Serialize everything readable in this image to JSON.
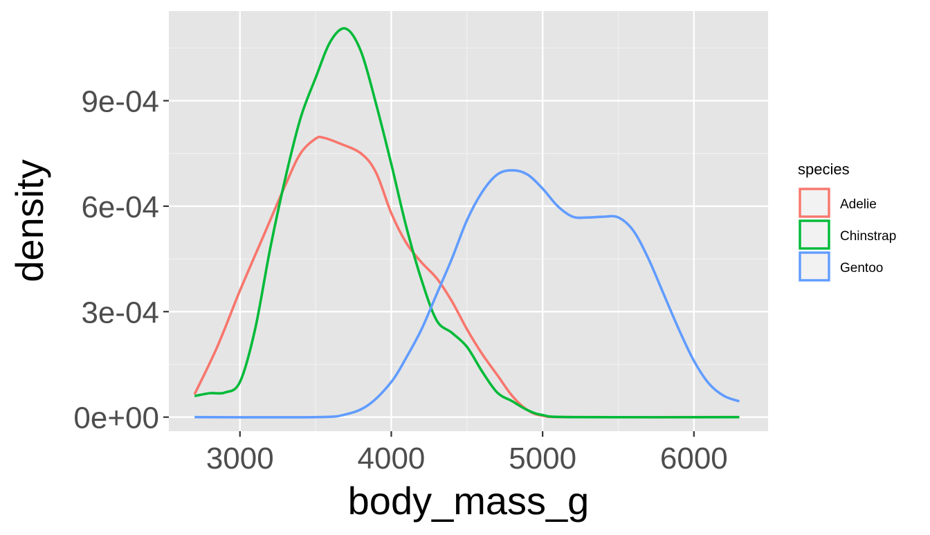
{
  "chart_data": {
    "type": "line",
    "xlabel": "body_mass_g",
    "ylabel": "density",
    "xlim": [
      2530,
      6490
    ],
    "ylim": [
      -4e-05,
      0.001155
    ],
    "x_ticks": [
      3000,
      4000,
      5000,
      6000
    ],
    "x_tick_labels": [
      "3000",
      "4000",
      "5000",
      "6000"
    ],
    "y_ticks": [
      0,
      0.0003,
      0.0006,
      0.0009
    ],
    "y_tick_labels": [
      "0e+00",
      "3e-04",
      "6e-04",
      "9e-04"
    ],
    "grid": true,
    "legend": {
      "title": "species",
      "position": "right"
    },
    "series": [
      {
        "name": "Adelie",
        "color": "#F8766D",
        "points": [
          [
            2700,
            6.5e-05
          ],
          [
            2850,
            0.0002
          ],
          [
            3000,
            0.00036
          ],
          [
            3150,
            0.00051
          ],
          [
            3300,
            0.00066
          ],
          [
            3400,
            0.00075
          ],
          [
            3500,
            0.000792
          ],
          [
            3550,
            0.000795
          ],
          [
            3650,
            0.00078
          ],
          [
            3800,
            0.00075
          ],
          [
            3900,
            0.000695
          ],
          [
            4000,
            0.00058
          ],
          [
            4100,
            0.000495
          ],
          [
            4200,
            0.00044
          ],
          [
            4300,
            0.000395
          ],
          [
            4400,
            0.00033
          ],
          [
            4500,
            0.00025
          ],
          [
            4600,
            0.00018
          ],
          [
            4700,
            0.00012
          ],
          [
            4800,
            6e-05
          ],
          [
            4900,
            2e-05
          ],
          [
            5000,
            4e-06
          ],
          [
            5200,
            0
          ],
          [
            6300,
            0
          ]
        ]
      },
      {
        "name": "Chinstrap",
        "color": "#00BA38",
        "points": [
          [
            2700,
            6e-05
          ],
          [
            2800,
            6.8e-05
          ],
          [
            2900,
            7e-05
          ],
          [
            3000,
            0.0001
          ],
          [
            3100,
            0.00025
          ],
          [
            3200,
            0.00048
          ],
          [
            3300,
            0.00068
          ],
          [
            3400,
            0.00085
          ],
          [
            3500,
            0.000965
          ],
          [
            3600,
            0.00107
          ],
          [
            3700,
            0.001105
          ],
          [
            3800,
            0.00104
          ],
          [
            3900,
            0.00089
          ],
          [
            4000,
            0.00072
          ],
          [
            4100,
            0.00054
          ],
          [
            4200,
            0.00039
          ],
          [
            4300,
            0.000275
          ],
          [
            4400,
            0.00024
          ],
          [
            4500,
            0.0002
          ],
          [
            4600,
            0.00013
          ],
          [
            4700,
            7e-05
          ],
          [
            4800,
            4.5e-05
          ],
          [
            4900,
            2e-05
          ],
          [
            5000,
            6e-06
          ],
          [
            5200,
            0
          ],
          [
            6300,
            0
          ]
        ]
      },
      {
        "name": "Gentoo",
        "color": "#619CFF",
        "points": [
          [
            2700,
            0
          ],
          [
            3500,
            0
          ],
          [
            3700,
            8e-06
          ],
          [
            3850,
            3.5e-05
          ],
          [
            4000,
            0.0001
          ],
          [
            4100,
            0.00017
          ],
          [
            4200,
            0.00025
          ],
          [
            4300,
            0.00035
          ],
          [
            4400,
            0.00045
          ],
          [
            4500,
            0.00056
          ],
          [
            4600,
            0.00064
          ],
          [
            4700,
            0.00069
          ],
          [
            4800,
            0.000702
          ],
          [
            4900,
            0.00069
          ],
          [
            5000,
            0.00065
          ],
          [
            5100,
            0.0006
          ],
          [
            5200,
            0.00057
          ],
          [
            5300,
            0.000568
          ],
          [
            5400,
            0.00057
          ],
          [
            5500,
            0.000568
          ],
          [
            5600,
            0.00053
          ],
          [
            5700,
            0.00045
          ],
          [
            5800,
            0.00035
          ],
          [
            5900,
            0.00025
          ],
          [
            6000,
            0.00016
          ],
          [
            6100,
            9.5e-05
          ],
          [
            6200,
            6e-05
          ],
          [
            6300,
            4.5e-05
          ]
        ]
      }
    ]
  }
}
